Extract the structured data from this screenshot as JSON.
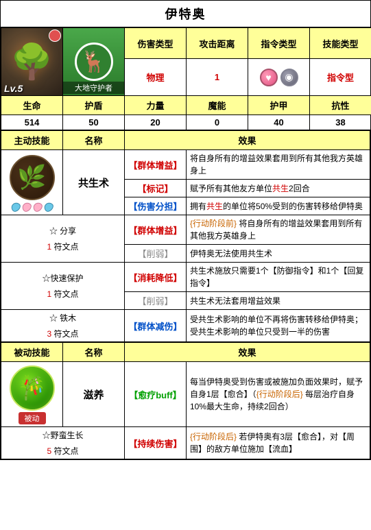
{
  "title": "伊特奥",
  "portrait": {
    "level": "Lv.5"
  },
  "classLabel": "大地守护者",
  "attrHeaders": {
    "dmgType": "伤害类型",
    "range": "攻击距离",
    "cmdType": "指令类型",
    "skillType": "技能类型"
  },
  "attrValues": {
    "dmgType": "物理",
    "range": "1",
    "skillType": "指令型"
  },
  "statHeaders": {
    "hp": "生命",
    "shield": "护盾",
    "str": "力量",
    "mag": "魔能",
    "armor": "护甲",
    "resist": "抗性"
  },
  "statValues": {
    "hp": "514",
    "shield": "50",
    "str": "20",
    "mag": "0",
    "armor": "40",
    "resist": "38"
  },
  "sectionHeaders": {
    "active": "主动技能",
    "passive": "被动技能",
    "name": "名称",
    "effect": "效果"
  },
  "active": {
    "name": "共生术",
    "effects": [
      {
        "tag": "【群体增益】",
        "tagColor": "red",
        "text": [
          "将自身所有的增益效果套用到所有其他我方英雄身上"
        ]
      },
      {
        "tag": "【标记】",
        "tagColor": "red",
        "text": [
          "赋予所有其他友方单位",
          {
            "t": "共生",
            "c": "red"
          },
          "2回合"
        ]
      },
      {
        "tag": "【伤害分担】",
        "tagColor": "blue",
        "text": [
          "拥有",
          {
            "t": "共生",
            "c": "red"
          },
          "的单位将50%受到的伤害转移给伊特奥"
        ]
      }
    ],
    "runes": [
      {
        "name": "☆ 分享",
        "cost": "1",
        "costLabel": "符文点",
        "lines": [
          {
            "tag": "【群体增益】",
            "tagColor": "red",
            "text": [
              {
                "t": "{行动阶段前}",
                "c": "orange"
              },
              " 将自身所有的增益效果套用到所有其他我方英雄身上"
            ]
          },
          {
            "tag": "【削弱】",
            "tagColor": "gray",
            "text": [
              "伊特奥无法使用共生术"
            ]
          }
        ]
      },
      {
        "name": "☆快速保护",
        "cost": "1",
        "costLabel": "符文点",
        "lines": [
          {
            "tag": "【消耗降低】",
            "tagColor": "red",
            "text": [
              "共生术施放只需要1个【防御指令】和1个【回复指令】"
            ]
          },
          {
            "tag": "【削弱】",
            "tagColor": "gray",
            "text": [
              "共生术无法套用增益效果"
            ]
          }
        ]
      },
      {
        "name": "☆ 铁木",
        "cost": "3",
        "costLabel": "符文点",
        "lines": [
          {
            "tag": "【群体减伤】",
            "tagColor": "blue",
            "text": [
              "受共生术影响的单位不再将伤害转移给伊特奥；受共生术影响的单位只受到一半的伤害"
            ]
          }
        ]
      }
    ]
  },
  "passive": {
    "name": "滋养",
    "effect": {
      "tag": "【愈疗buff】",
      "tagColor": "green",
      "text": [
        "每当伊特奥受到伤害或被施加负面效果时，赋予自身1层【愈合】（",
        {
          "t": "{行动阶段后}",
          "c": "orange"
        },
        " 每层治疗自身10%最大生命，持续2回合）"
      ]
    },
    "rune": {
      "name": "☆野蛮生长",
      "cost": "5",
      "costLabel": "符文点",
      "line": {
        "tag": "【持续伤害】",
        "tagColor": "red",
        "text": [
          {
            "t": "{行动阶段后}",
            "c": "orange"
          },
          " 若伊特奥有3层【愈合】，对【周围】的敌方单位施加【流血】"
        ]
      }
    }
  },
  "colors": {
    "red": "#d00000",
    "blue": "#0050c8",
    "green": "#00a000",
    "gray": "#888888",
    "orange": "#c86400"
  }
}
